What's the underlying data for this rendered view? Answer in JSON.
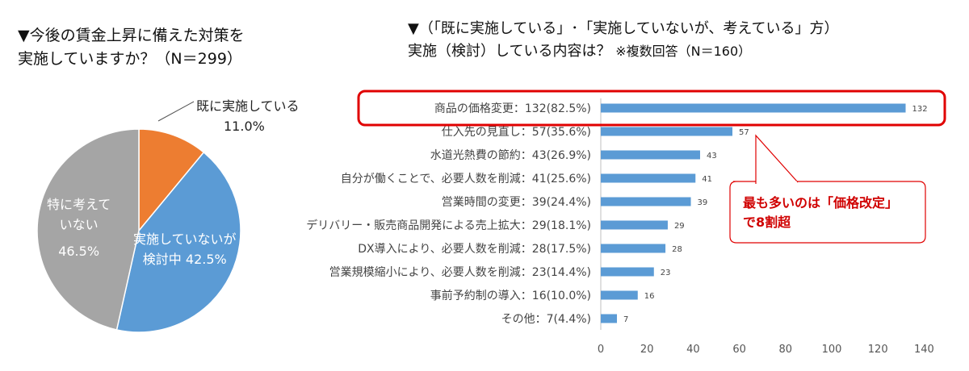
{
  "left_title": {
    "line1": "▼今後の賃金上昇に備えた対策を",
    "line2": "実施していますか？（N＝299）"
  },
  "right_title": {
    "line1": "▼（「既に実施している」･「実施していないが、考えている」方）",
    "line2": "実施（検討）している内容は？",
    "note": "※複数回答（N＝160）"
  },
  "callout": {
    "line1": "最も多いのは「価格改定」",
    "line2": "で8割超"
  },
  "pie_labels": {
    "a_name": "既に実施している",
    "a_value": "11.0%",
    "b_name": "実施していないが",
    "b_value": "検討中 42.5%",
    "c_name1": "特に考えて",
    "c_name2": "いない",
    "c_value": "46.5%"
  },
  "colors": {
    "orange": "#ed7d31",
    "blue": "#5b9bd5",
    "gray": "#a5a5a5",
    "bar": "#5b9bd5",
    "highlight": "#e00000"
  },
  "chart_data": [
    {
      "type": "pie",
      "title": "▼今後の賃金上昇に備えた対策を実施していますか？（N＝299）",
      "slices": [
        {
          "label": "既に実施している",
          "value": 11.0
        },
        {
          "label": "実施していないが検討中",
          "value": 42.5
        },
        {
          "label": "特に考えていない",
          "value": 46.5
        }
      ]
    },
    {
      "type": "bar",
      "orientation": "horizontal",
      "title": "実施（検討）している内容は？",
      "categories": [
        "商品の価格変更：132(82.5%)",
        "仕入先の見直し：57(35.6%)",
        "水道光熱費の節約：43(26.9%)",
        "自分が働くことで、必要人数を削減：41(25.6%)",
        "営業時間の変更：39(24.4%)",
        "デリバリー・販売商品開発による売上拡大：29(18.1%)",
        "DX導入により、必要人数を削減：28(17.5%)",
        "営業規模縮小により、必要人数を削減：23(14.4%)",
        "事前予約制の導入：16(10.0%)",
        "その他：7(4.4%)"
      ],
      "values": [
        132,
        57,
        43,
        41,
        39,
        29,
        28,
        23,
        16,
        7
      ],
      "xlim": [
        0,
        150
      ],
      "xticks": [
        0,
        20,
        40,
        60,
        80,
        100,
        120,
        140
      ],
      "grid": false,
      "highlight_index": 0
    }
  ]
}
